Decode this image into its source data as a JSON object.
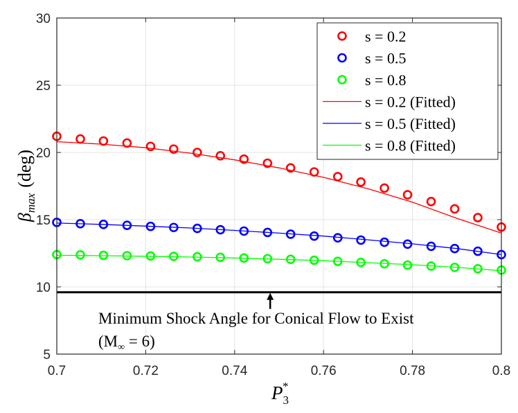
{
  "chart_data": {
    "type": "scatter",
    "title": "",
    "xlabel_base": "P",
    "xlabel_sub": "3",
    "xlabel_sup": "*",
    "ylabel_symbol": "β",
    "ylabel_sub": "max",
    "ylabel_unit": "(deg)",
    "xlim": [
      0.7,
      0.8
    ],
    "ylim": [
      5,
      30
    ],
    "xticks": [
      "0.7",
      "0.72",
      "0.74",
      "0.76",
      "0.78",
      "0.8"
    ],
    "yticks": [
      "5",
      "10",
      "15",
      "20",
      "25",
      "30"
    ],
    "grid": true,
    "legend_position": "top-right",
    "x": [
      0.7,
      0.7053,
      0.7105,
      0.7158,
      0.7211,
      0.7263,
      0.7316,
      0.7368,
      0.7421,
      0.7474,
      0.7526,
      0.7579,
      0.7632,
      0.7684,
      0.7737,
      0.7789,
      0.7842,
      0.7895,
      0.7947,
      0.8
    ],
    "series": [
      {
        "name": "s = 0.2",
        "marker": "circle",
        "color": "#ff0000",
        "values": [
          21.2,
          21.0,
          20.85,
          20.7,
          20.45,
          20.25,
          20.0,
          19.75,
          19.5,
          19.2,
          18.85,
          18.55,
          18.2,
          17.8,
          17.35,
          16.85,
          16.35,
          15.8,
          15.15,
          14.45
        ]
      },
      {
        "name": "s = 0.5",
        "marker": "circle",
        "color": "#0000ff",
        "values": [
          14.8,
          14.7,
          14.65,
          14.58,
          14.5,
          14.42,
          14.35,
          14.25,
          14.15,
          14.05,
          13.92,
          13.78,
          13.65,
          13.48,
          13.32,
          13.18,
          13.02,
          12.85,
          12.65,
          12.4
        ]
      },
      {
        "name": "s = 0.8",
        "marker": "circle",
        "color": "#00ff00",
        "values": [
          12.4,
          12.38,
          12.35,
          12.32,
          12.3,
          12.27,
          12.24,
          12.2,
          12.15,
          12.1,
          12.05,
          11.98,
          11.9,
          11.82,
          11.72,
          11.62,
          11.55,
          11.45,
          11.35,
          11.25
        ]
      },
      {
        "name": "s = 0.2 (Fitted)",
        "line": true,
        "color": "#ff0000",
        "x": [
          0.7,
          0.71,
          0.72,
          0.73,
          0.74,
          0.75,
          0.76,
          0.77,
          0.78,
          0.79,
          0.8
        ],
        "values": [
          20.8,
          20.62,
          20.35,
          19.95,
          19.45,
          18.85,
          18.15,
          17.3,
          16.3,
          15.1,
          14.0
        ]
      },
      {
        "name": "s = 0.5 (Fitted)",
        "line": true,
        "color": "#0000ff",
        "x": [
          0.7,
          0.71,
          0.72,
          0.73,
          0.74,
          0.75,
          0.76,
          0.77,
          0.78,
          0.79,
          0.8
        ],
        "values": [
          14.75,
          14.65,
          14.52,
          14.38,
          14.2,
          14.0,
          13.78,
          13.5,
          13.2,
          12.85,
          12.4
        ]
      },
      {
        "name": "s = 0.8 (Fitted)",
        "line": true,
        "color": "#00ff00",
        "x": [
          0.7,
          0.71,
          0.72,
          0.73,
          0.74,
          0.75,
          0.76,
          0.77,
          0.78,
          0.79,
          0.8
        ],
        "values": [
          12.35,
          12.32,
          12.28,
          12.22,
          12.15,
          12.05,
          11.95,
          11.8,
          11.65,
          11.45,
          11.2
        ]
      }
    ],
    "reference_line": {
      "y": 9.6,
      "color": "#000000"
    },
    "annotation": {
      "text": "Minimum Shock Angle for Conical Flow to Exist",
      "subtext_open": "(M",
      "subtext_sub": "∞",
      "subtext_close": " = 6)",
      "arrow_x": 0.748
    }
  }
}
